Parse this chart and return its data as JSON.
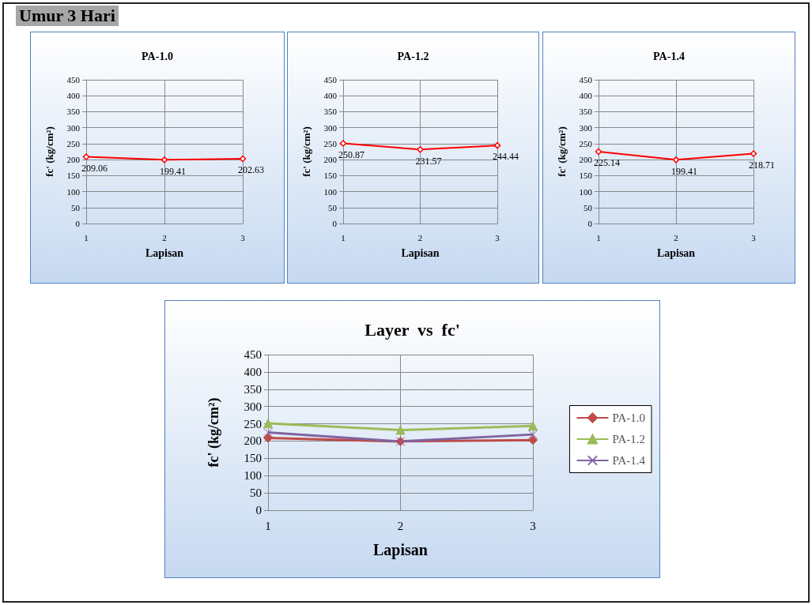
{
  "chart_data": [
    {
      "type": "line",
      "title": "PA-1.0",
      "annotations": [
        "Umur  3 Hari"
      ],
      "xlabel": "Lapisan",
      "ylabel": "fc' (kg/cm²)",
      "categories": [
        "1",
        "2",
        "3"
      ],
      "series": [
        {
          "color": "#ff0000",
          "values": [
            209.06,
            199.41,
            202.63
          ]
        }
      ],
      "ylim": [
        0,
        450
      ],
      "yticks": [
        0,
        50,
        100,
        150,
        200,
        250,
        300,
        350,
        400,
        450
      ],
      "grid": true,
      "marker": "diamond",
      "data_labels": true
    },
    {
      "type": "line",
      "title": "PA-1.2",
      "xlabel": "Lapisan",
      "ylabel": "fc' (kg/cm²)",
      "categories": [
        "1",
        "2",
        "3"
      ],
      "series": [
        {
          "color": "#ff0000",
          "values": [
            250.87,
            231.57,
            244.44
          ]
        }
      ],
      "ylim": [
        0,
        450
      ],
      "yticks": [
        0,
        50,
        100,
        150,
        200,
        250,
        300,
        350,
        400,
        450
      ],
      "grid": true,
      "marker": "diamond",
      "data_labels": true
    },
    {
      "type": "line",
      "title": "PA-1.4",
      "xlabel": "Lapisan",
      "ylabel": "fc' (kg/cm²)",
      "categories": [
        "1",
        "2",
        "3"
      ],
      "series": [
        {
          "color": "#ff0000",
          "values": [
            225.14,
            199.41,
            218.71
          ]
        }
      ],
      "ylim": [
        0,
        450
      ],
      "yticks": [
        0,
        50,
        100,
        150,
        200,
        250,
        300,
        350,
        400,
        450
      ],
      "grid": true,
      "marker": "diamond",
      "data_labels": true
    },
    {
      "type": "line",
      "title": "Layer  vs  fc'",
      "xlabel": "Lapisan",
      "ylabel": "fc' (kg/cm²)",
      "categories": [
        "1",
        "2",
        "3"
      ],
      "series": [
        {
          "name": "PA-1.0",
          "color": "#be4b48",
          "marker": "diamond",
          "values": [
            209,
            199,
            203
          ]
        },
        {
          "name": "PA-1.2",
          "color": "#9bbb59",
          "marker": "triangle",
          "values": [
            251,
            232,
            244
          ]
        },
        {
          "name": "PA-1.4",
          "color": "#8064a2",
          "marker": "cross",
          "values": [
            225,
            199,
            219
          ]
        }
      ],
      "ylim": [
        0,
        450
      ],
      "yticks": [
        0,
        50,
        100,
        150,
        200,
        250,
        300,
        350,
        400,
        450
      ],
      "grid": true,
      "legend": "right"
    }
  ]
}
